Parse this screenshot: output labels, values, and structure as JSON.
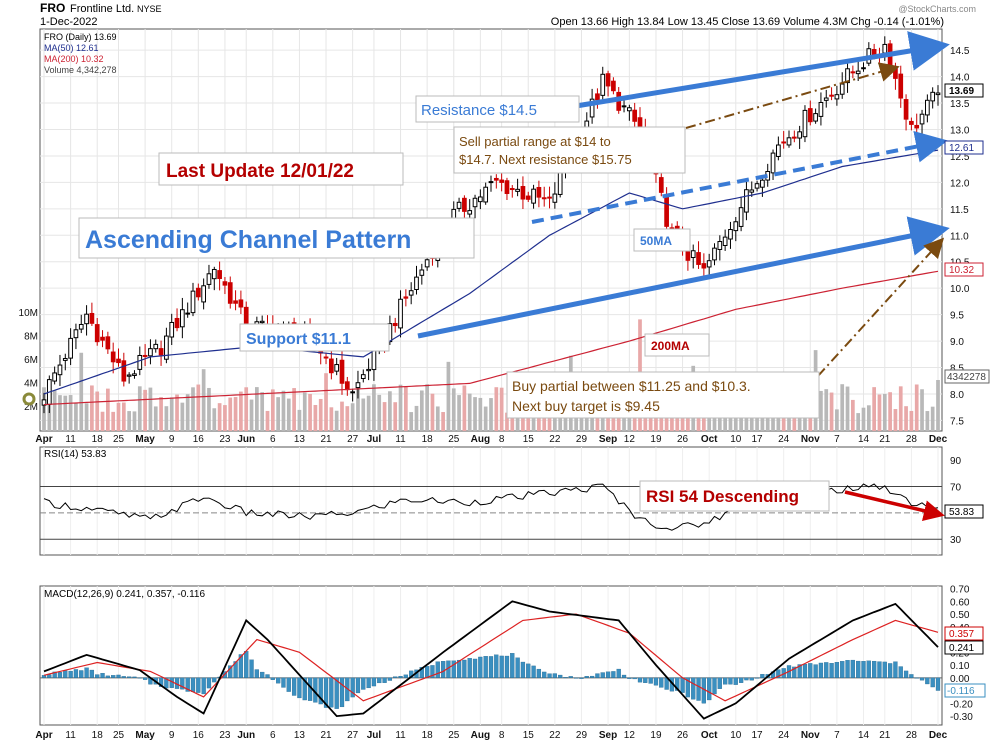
{
  "header": {
    "symbol": "FRO",
    "company": "Frontline Ltd.",
    "exchange": "NYSE",
    "date": "1-Dec-2022",
    "ohlc_text": "Open 13.66  High 13.84  Low 13.45  Close 13.69  Volume 4.3M  Chg -0.14 (-1.01%)",
    "watermark": "@StockCharts.com"
  },
  "legend": {
    "price": "FRO (Daily) 13.69",
    "ma50": "MA(50) 12.61",
    "ma200": "MA(200) 10.32",
    "volume": "Volume 4,342,278"
  },
  "colors": {
    "up": "#000000",
    "down": "#cc0000",
    "ma50": "#1f2f8f",
    "ma200": "#cc2233",
    "channel": "#3a7bd5",
    "annot_brown": "#7a4a10",
    "vol_up": "#b8b8b8",
    "vol_down": "#e8a8a8",
    "hist": "#3a8fc0"
  },
  "chart_data": [
    {
      "type": "candlestick",
      "panel": "price",
      "ylim": [
        7.3,
        14.9
      ],
      "yticks": [
        "7.5",
        "8.0",
        "8.5",
        "9.0",
        "9.5",
        "10.0",
        "10.5",
        "11.0",
        "11.5",
        "12.0",
        "12.5",
        "13.0",
        "13.5",
        "14.0",
        "14.5"
      ],
      "vol_ticks": [
        "2M",
        "4M",
        "6M",
        "8M",
        "10M"
      ],
      "xlabels": [
        "Apr",
        "11",
        "18",
        "25",
        "May",
        "9",
        "16",
        "23",
        "Jun",
        "6",
        "13",
        "21",
        "27",
        "Jul",
        "11",
        "18",
        "25",
        "Aug",
        "8",
        "15",
        "22",
        "29",
        "Sep",
        "12",
        "19",
        "26",
        "Oct",
        "10",
        "17",
        "24",
        "Nov",
        "7",
        "14",
        "21",
        "28",
        "Dec"
      ],
      "price_key_points": [
        [
          0,
          8.0
        ],
        [
          8,
          9.5
        ],
        [
          15,
          8.3
        ],
        [
          22,
          8.9
        ],
        [
          32,
          10.4
        ],
        [
          38,
          9.3
        ],
        [
          50,
          9.1
        ],
        [
          58,
          8.0
        ],
        [
          68,
          9.8
        ],
        [
          76,
          11.3
        ],
        [
          85,
          12.0
        ],
        [
          95,
          11.6
        ],
        [
          105,
          13.9
        ],
        [
          112,
          13.0
        ],
        [
          118,
          11.0
        ],
        [
          124,
          10.3
        ],
        [
          130,
          11.4
        ],
        [
          138,
          12.7
        ],
        [
          146,
          13.5
        ],
        [
          153,
          14.2
        ],
        [
          158,
          14.6
        ],
        [
          163,
          13.0
        ],
        [
          168,
          13.69
        ]
      ],
      "ma50_key_points": [
        [
          0,
          8.0
        ],
        [
          20,
          8.7
        ],
        [
          40,
          8.9
        ],
        [
          60,
          8.7
        ],
        [
          80,
          9.9
        ],
        [
          95,
          11.0
        ],
        [
          110,
          11.8
        ],
        [
          120,
          11.5
        ],
        [
          135,
          11.8
        ],
        [
          150,
          12.3
        ],
        [
          168,
          12.61
        ]
      ],
      "ma200_key_points": [
        [
          0,
          7.8
        ],
        [
          40,
          8.0
        ],
        [
          80,
          8.2
        ],
        [
          110,
          9.0
        ],
        [
          130,
          9.6
        ],
        [
          150,
          10.0
        ],
        [
          168,
          10.32
        ]
      ],
      "last_price": "13.69",
      "ma50_last": "12.61",
      "ma200_last": "10.32",
      "volume_last": "4342278"
    },
    {
      "type": "line",
      "panel": "rsi",
      "name": "RSI(14) 53.83",
      "ylim": [
        18,
        100
      ],
      "yticks": [
        "30",
        "50",
        "70",
        "90"
      ],
      "last": "53.83",
      "key_points": [
        [
          0,
          58
        ],
        [
          10,
          52
        ],
        [
          20,
          45
        ],
        [
          30,
          62
        ],
        [
          38,
          50
        ],
        [
          50,
          47
        ],
        [
          58,
          50
        ],
        [
          68,
          60
        ],
        [
          80,
          58
        ],
        [
          95,
          65
        ],
        [
          105,
          70
        ],
        [
          112,
          45
        ],
        [
          118,
          38
        ],
        [
          124,
          42
        ],
        [
          135,
          62
        ],
        [
          150,
          68
        ],
        [
          158,
          70
        ],
        [
          163,
          58
        ],
        [
          168,
          53.83
        ]
      ]
    },
    {
      "type": "line",
      "panel": "macd",
      "name": "MACD(12,26,9) 0.241, 0.357, -0.116",
      "ylim": [
        -0.37,
        0.72
      ],
      "yticks": [
        "-0.30",
        "-0.20",
        "-0.10",
        "0.00",
        "0.10",
        "0.20",
        "0.30",
        "0.40",
        "0.50",
        "0.60",
        "0.70"
      ],
      "macd_last": "0.241",
      "signal_last": "0.357",
      "hist_last": "-0.116",
      "macd_key_points": [
        [
          0,
          0.05
        ],
        [
          8,
          0.18
        ],
        [
          18,
          0.06
        ],
        [
          25,
          -0.15
        ],
        [
          30,
          -0.28
        ],
        [
          38,
          0.45
        ],
        [
          42,
          0.3
        ],
        [
          55,
          -0.3
        ],
        [
          60,
          -0.28
        ],
        [
          75,
          0.2
        ],
        [
          88,
          0.6
        ],
        [
          95,
          0.52
        ],
        [
          108,
          0.45
        ],
        [
          115,
          0.1
        ],
        [
          124,
          -0.32
        ],
        [
          130,
          -0.2
        ],
        [
          140,
          0.15
        ],
        [
          152,
          0.45
        ],
        [
          160,
          0.58
        ],
        [
          168,
          0.241
        ]
      ],
      "signal_key_points": [
        [
          0,
          0.02
        ],
        [
          10,
          0.12
        ],
        [
          20,
          0.05
        ],
        [
          30,
          -0.15
        ],
        [
          40,
          0.3
        ],
        [
          48,
          0.2
        ],
        [
          60,
          -0.18
        ],
        [
          75,
          0.05
        ],
        [
          90,
          0.45
        ],
        [
          100,
          0.5
        ],
        [
          110,
          0.35
        ],
        [
          120,
          0.0
        ],
        [
          128,
          -0.18
        ],
        [
          140,
          0.05
        ],
        [
          152,
          0.3
        ],
        [
          160,
          0.45
        ],
        [
          168,
          0.357
        ]
      ]
    }
  ],
  "annotations": {
    "last_update": "Last Update 12/01/22",
    "pattern": "Ascending Channel Pattern",
    "resistance": "Resistance $14.5",
    "support": "Support  $11.1",
    "sell_1": "Sell partial range at $14 to",
    "sell_2": "$14.7. Next resistance $15.75",
    "buy_1": "Buy partial between $11.25 and $10.3.",
    "buy_2": "Next buy target is $9.45",
    "ma50_label": "50MA",
    "ma200_label": "200MA",
    "rsi_note": "RSI 54 Descending"
  }
}
